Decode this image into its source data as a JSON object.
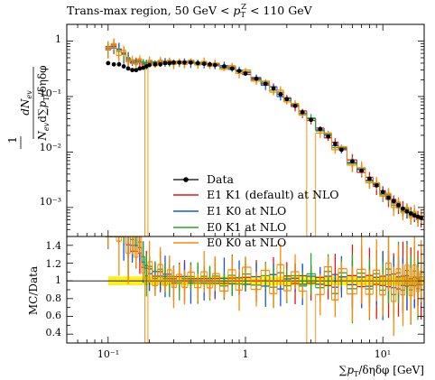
{
  "chart_data": [
    {
      "type": "line",
      "panel": "main",
      "title_parts": [
        "Trans-max region, 50 GeV < ",
        "p",
        "T",
        "Z",
        " < 110 GeV"
      ],
      "ylabel_num_parts": [
        "dN",
        "ev"
      ],
      "ylabel_den_parts": [
        "N",
        "ev",
        "d∑",
        "p",
        "T",
        "/δηδφ"
      ],
      "ylabel_prefix": "1",
      "x_scale": "log",
      "y_scale": "log",
      "xlim": [
        0.05,
        20
      ],
      "ylim": [
        0.0003,
        2
      ],
      "x_tick_labels": [
        "10⁻¹",
        "1",
        "10¹"
      ],
      "y_tick_labels": [
        "1",
        "10⁻¹",
        "10⁻²",
        "10⁻³"
      ],
      "legend_position": "bottom-left",
      "x": [
        0.1,
        0.11,
        0.12,
        0.13,
        0.14,
        0.15,
        0.16,
        0.17,
        0.18,
        0.19,
        0.2,
        0.22,
        0.24,
        0.26,
        0.28,
        0.3,
        0.33,
        0.36,
        0.4,
        0.45,
        0.5,
        0.55,
        0.6,
        0.7,
        0.8,
        0.9,
        1.0,
        1.2,
        1.4,
        1.6,
        1.8,
        2.0,
        2.3,
        2.6,
        3.0,
        3.5,
        4.0,
        4.5,
        5.0,
        6.0,
        7.0,
        8.0,
        9.0,
        10.0,
        11.0,
        12.0,
        13.0,
        14.0,
        15.0,
        16.0,
        17.0,
        18.0,
        19.0
      ],
      "series": [
        {
          "name": "Data",
          "color": "#000000",
          "style": "markers",
          "values": [
            0.4,
            0.38,
            0.38,
            0.35,
            0.32,
            0.3,
            0.3,
            0.32,
            0.33,
            0.35,
            0.37,
            0.38,
            0.38,
            0.4,
            0.4,
            0.41,
            0.41,
            0.41,
            0.41,
            0.4,
            0.39,
            0.38,
            0.37,
            0.35,
            0.32,
            0.29,
            0.26,
            0.21,
            0.17,
            0.14,
            0.11,
            0.09,
            0.068,
            0.052,
            0.038,
            0.026,
            0.019,
            0.014,
            0.011,
            0.0068,
            0.0046,
            0.0033,
            0.0025,
            0.0019,
            0.0015,
            0.0013,
            0.0011,
            0.00095,
            0.00085,
            0.00078,
            0.00072,
            0.00068,
            0.00065
          ]
        },
        {
          "name": "E1 K1 (default) at NLO",
          "color": "#ee1111",
          "style": "step",
          "values": [
            0.75,
            0.8,
            0.7,
            0.6,
            0.45,
            0.4,
            0.45,
            0.42,
            0.38,
            0.4,
            0.42,
            0.4,
            0.42,
            0.43,
            0.41,
            0.42,
            0.43,
            0.41,
            0.42,
            0.4,
            0.4,
            0.38,
            0.38,
            0.34,
            0.33,
            0.29,
            0.27,
            0.21,
            0.17,
            0.15,
            0.11,
            0.095,
            0.066,
            0.055,
            0.037,
            0.027,
            0.018,
            0.015,
            0.011,
            0.0072,
            0.0043,
            0.0035,
            0.0024,
            0.002,
            0.0014,
            0.0014,
            0.001,
            0.001,
            0.0008,
            0.0008,
            0.00068,
            0.0007,
            0.00062
          ]
        },
        {
          "name": "E1 K0 at NLO",
          "color": "#1155ee",
          "style": "step",
          "values": [
            0.7,
            0.75,
            0.72,
            0.58,
            0.5,
            0.42,
            0.42,
            0.44,
            0.4,
            0.41,
            0.4,
            0.42,
            0.4,
            0.42,
            0.43,
            0.4,
            0.41,
            0.43,
            0.4,
            0.41,
            0.38,
            0.39,
            0.36,
            0.36,
            0.31,
            0.3,
            0.25,
            0.22,
            0.16,
            0.15,
            0.1,
            0.092,
            0.07,
            0.05,
            0.04,
            0.025,
            0.02,
            0.013,
            0.0115,
            0.0065,
            0.0048,
            0.0031,
            0.0026,
            0.0018,
            0.0016,
            0.0012,
            0.00115,
            0.0009,
            0.0009,
            0.00074,
            0.00075,
            0.00065,
            0.00068
          ]
        },
        {
          "name": "E0 K1 at NLO",
          "color": "#22aa22",
          "style": "step",
          "values": [
            0.8,
            0.85,
            0.65,
            0.62,
            0.48,
            0.44,
            0.4,
            0.46,
            0.42,
            0.37,
            0.43,
            0.39,
            0.43,
            0.41,
            0.42,
            0.43,
            0.4,
            0.42,
            0.43,
            0.39,
            0.41,
            0.37,
            0.39,
            0.33,
            0.34,
            0.28,
            0.28,
            0.2,
            0.18,
            0.13,
            0.12,
            0.085,
            0.072,
            0.049,
            0.041,
            0.024,
            0.021,
            0.012,
            0.012,
            0.0062,
            0.005,
            0.003,
            0.0027,
            0.0017,
            0.0017,
            0.0011,
            0.0012,
            0.00085,
            0.00095,
            0.0007,
            0.0008,
            0.00062,
            0.0007
          ]
        },
        {
          "name": "E0 K0 at NLO",
          "color": "#ff8800",
          "style": "step",
          "values": [
            0.72,
            0.9,
            0.55,
            0.68,
            0.42,
            0.46,
            0.38,
            0.48,
            0.36,
            0.0001,
            0.45,
            0.36,
            0.45,
            0.38,
            0.45,
            0.38,
            0.44,
            0.38,
            0.45,
            0.37,
            0.43,
            0.35,
            0.4,
            0.31,
            0.36,
            0.26,
            0.3,
            0.19,
            0.19,
            0.12,
            0.13,
            0.08,
            0.075,
            0.046,
            0.0001,
            0.022,
            0.022,
            0.011,
            0.0125,
            0.0058,
            0.0052,
            0.0028,
            0.0028,
            0.0016,
            0.0018,
            0.001,
            0.00125,
            0.0008,
            0.001,
            0.00065,
            0.00085,
            0.0006,
            0.00072
          ]
        }
      ]
    },
    {
      "type": "line",
      "panel": "ratio",
      "ylabel": "MC/Data",
      "xlabel_parts": [
        "∑",
        "p",
        "T",
        "/δηδφ [GeV]"
      ],
      "x_scale": "log",
      "xlim": [
        0.05,
        20
      ],
      "ylim": [
        0.3,
        1.5
      ],
      "y_tick_labels": [
        "1.4",
        "1.2",
        "1",
        "0.8",
        "0.6",
        "0.4"
      ],
      "band": {
        "color": "#ffee00",
        "lower": 0.95,
        "upper": 1.05,
        "xrange": [
          0.1,
          20
        ]
      }
    }
  ]
}
